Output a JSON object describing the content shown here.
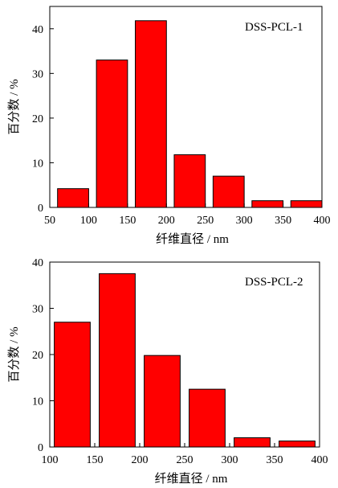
{
  "chart_data": [
    {
      "type": "bar",
      "label": "DSS-PCL-1",
      "xlabel": "纤维直径 / nm",
      "ylabel": "百分数 / %",
      "xlim": [
        50,
        400
      ],
      "ylim": [
        0,
        45
      ],
      "xticks": [
        50,
        100,
        150,
        200,
        250,
        300,
        350,
        400
      ],
      "yticks": [
        0,
        10,
        20,
        30,
        40
      ],
      "bar_color": "#ff0000",
      "bins": [
        {
          "x0": 60,
          "x1": 100,
          "value": 4.2
        },
        {
          "x0": 110,
          "x1": 150,
          "value": 33.0
        },
        {
          "x0": 160,
          "x1": 200,
          "value": 41.8
        },
        {
          "x0": 210,
          "x1": 250,
          "value": 11.8
        },
        {
          "x0": 260,
          "x1": 300,
          "value": 7.0
        },
        {
          "x0": 310,
          "x1": 350,
          "value": 1.5
        },
        {
          "x0": 360,
          "x1": 400,
          "value": 1.5
        }
      ]
    },
    {
      "type": "bar",
      "label": "DSS-PCL-2",
      "xlabel": "纤维直径 / nm",
      "ylabel": "百分数 / %",
      "xlim": [
        100,
        400
      ],
      "ylim": [
        0,
        40
      ],
      "xticks": [
        100,
        150,
        200,
        250,
        300,
        350,
        400
      ],
      "yticks": [
        0,
        10,
        20,
        30,
        40
      ],
      "bar_color": "#ff0000",
      "bins": [
        {
          "x0": 105,
          "x1": 145,
          "value": 27.0
        },
        {
          "x0": 155,
          "x1": 195,
          "value": 37.5
        },
        {
          "x0": 205,
          "x1": 245,
          "value": 19.8
        },
        {
          "x0": 255,
          "x1": 295,
          "value": 12.5
        },
        {
          "x0": 305,
          "x1": 345,
          "value": 2.0
        },
        {
          "x0": 355,
          "x1": 395,
          "value": 1.3
        }
      ]
    }
  ]
}
